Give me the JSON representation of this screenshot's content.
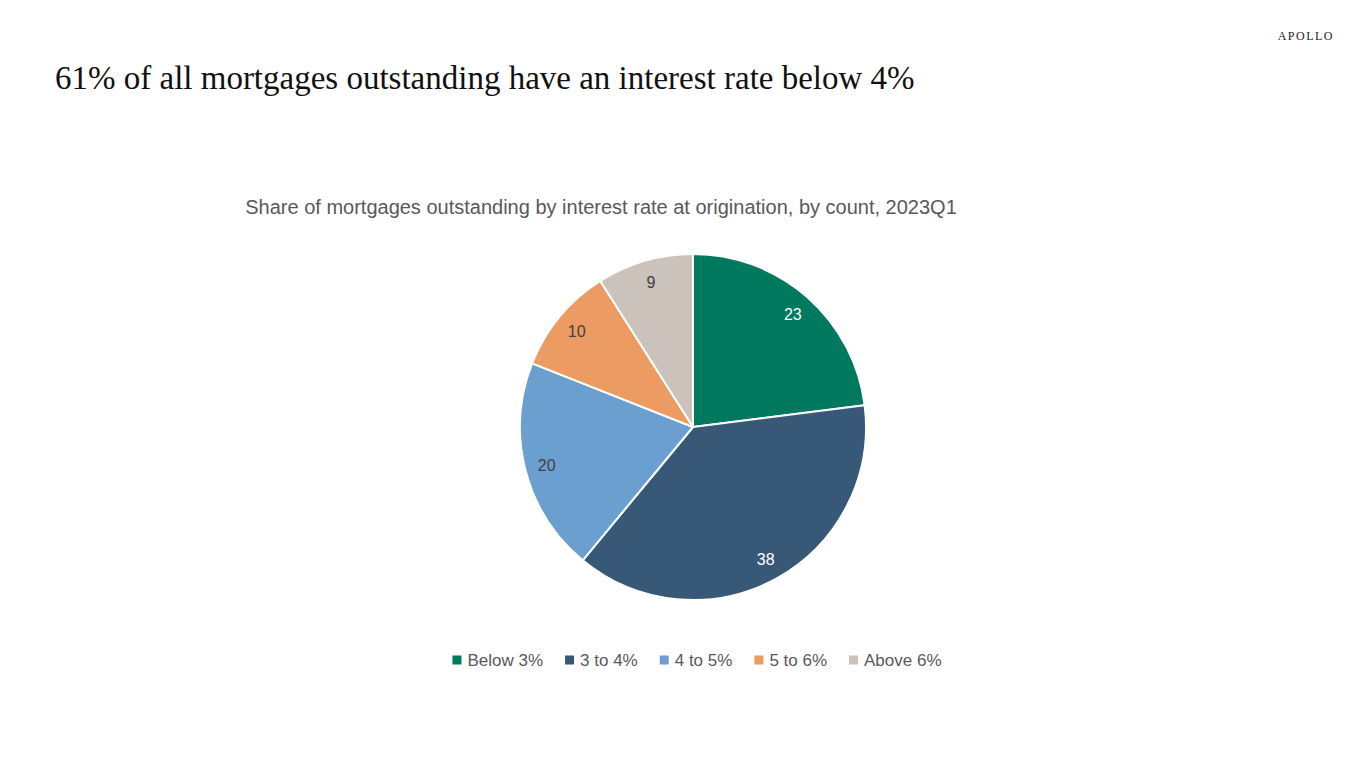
{
  "brand": "APOLLO",
  "chart_data": {
    "type": "pie",
    "title": "61% of all mortgages outstanding have an interest rate below 4%",
    "subtitle": "Share of mortgages outstanding by interest rate at origination, by count, 2023Q1",
    "categories": [
      "Below 3%",
      "3 to 4%",
      "4 to 5%",
      "5 to 6%",
      "Above 6%"
    ],
    "values": [
      23,
      38,
      20,
      10,
      9
    ],
    "colors": [
      "#00795f",
      "#375877",
      "#6a9fd0",
      "#ec9c62",
      "#cac2bb"
    ],
    "data_labels": true,
    "legend": "bottom"
  }
}
